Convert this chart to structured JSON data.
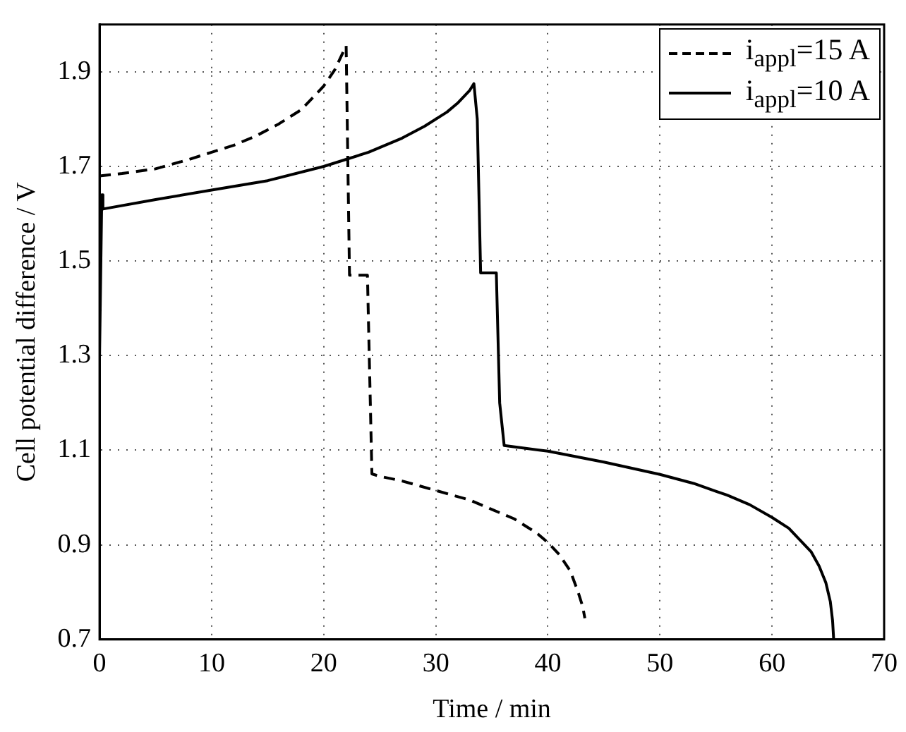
{
  "chart_data": {
    "type": "line",
    "xlabel": "Time / min",
    "ylabel": "Cell potential difference / V",
    "xlim": [
      0,
      70
    ],
    "xticks": [
      0,
      10,
      20,
      30,
      40,
      50,
      60,
      70
    ],
    "ylim": [
      0.7,
      2.0
    ],
    "yticks": [
      0.7,
      0.9,
      1.1,
      1.3,
      1.5,
      1.7,
      1.9
    ],
    "grid": true,
    "legend": "top right",
    "marker": "none",
    "series": [
      {
        "name": "i$_{appl}$=15 A",
        "color": "#000000",
        "line_style": "dashed",
        "x": [
          0,
          2,
          5,
          8,
          10,
          12,
          14,
          16,
          18,
          19,
          20,
          21,
          22,
          22.3,
          23.9,
          24.3,
          25,
          27,
          30,
          33,
          35,
          37,
          39,
          40,
          41,
          42,
          42.7,
          43.1,
          43.3
        ],
        "values": [
          1.68,
          1.685,
          1.695,
          1.715,
          1.73,
          1.745,
          1.765,
          1.79,
          1.82,
          1.845,
          1.87,
          1.905,
          1.955,
          1.47,
          1.47,
          1.05,
          1.045,
          1.035,
          1.015,
          0.995,
          0.975,
          0.955,
          0.925,
          0.905,
          0.88,
          0.845,
          0.8,
          0.77,
          0.745
        ]
      },
      {
        "name": "i$_{appl}$=10 A",
        "color": "#000000",
        "line_style": "solid",
        "x": [
          0,
          0.2,
          0.3,
          5,
          10,
          15,
          20,
          24,
          27,
          29,
          31,
          32,
          33,
          33.4,
          33.7,
          34.0,
          35.4,
          35.7,
          36.1,
          40,
          45,
          50,
          53,
          56,
          58,
          60,
          61.5,
          62.5,
          63.5,
          64.2,
          64.8,
          65.2,
          65.4,
          65.5
        ],
        "values": [
          1.3,
          1.64,
          1.61,
          1.63,
          1.65,
          1.67,
          1.7,
          1.73,
          1.76,
          1.785,
          1.815,
          1.835,
          1.86,
          1.875,
          1.8,
          1.475,
          1.475,
          1.2,
          1.11,
          1.098,
          1.075,
          1.049,
          1.03,
          1.005,
          0.985,
          0.958,
          0.935,
          0.91,
          0.885,
          0.855,
          0.82,
          0.78,
          0.74,
          0.7
        ]
      }
    ]
  }
}
